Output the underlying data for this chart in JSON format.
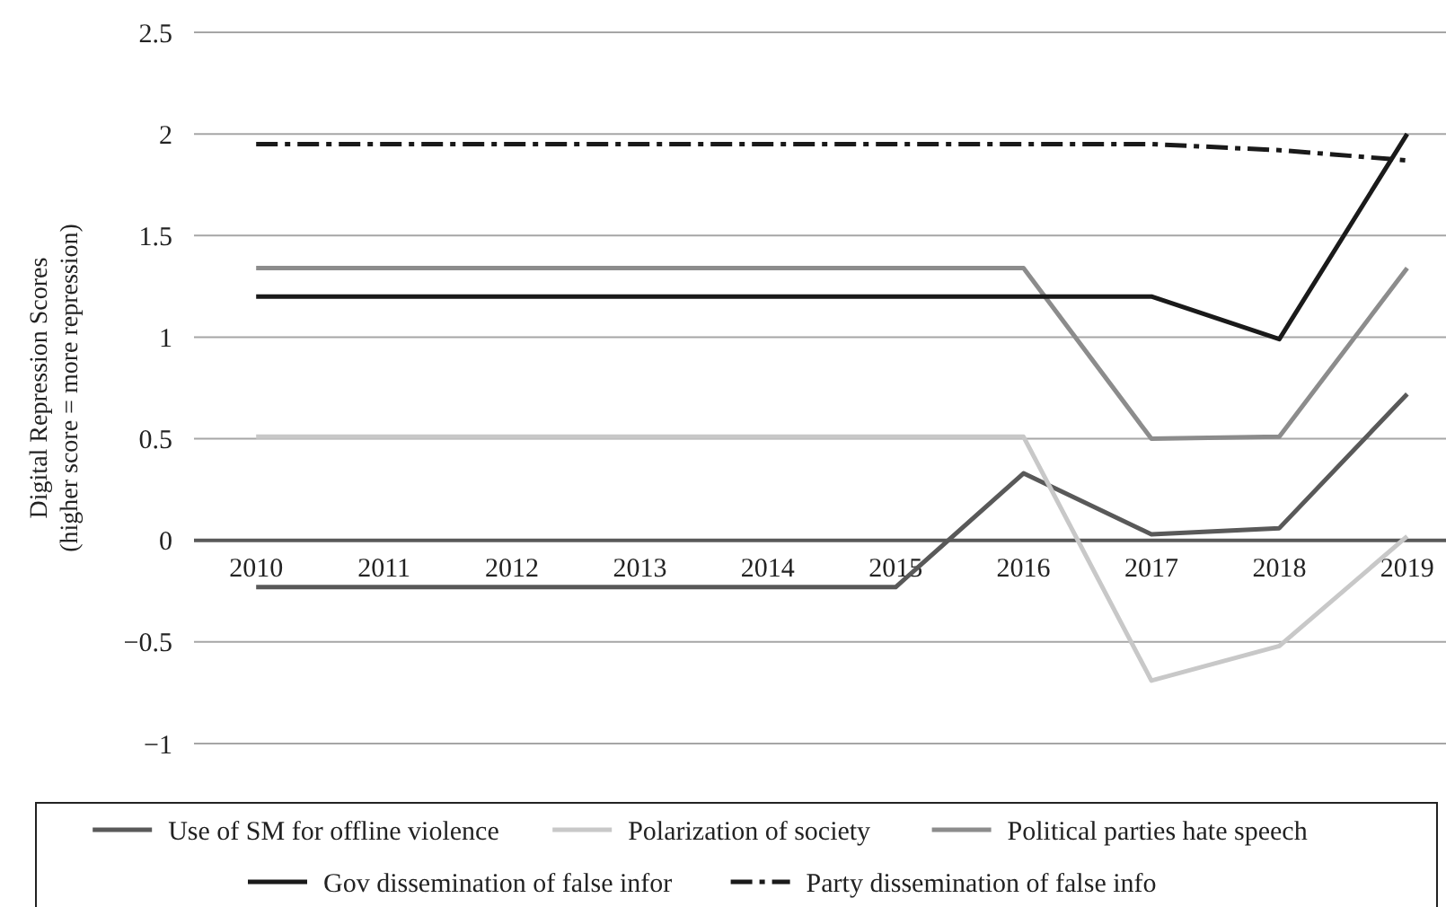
{
  "chart_data": {
    "type": "line",
    "ylabel": "Digital Repression Scores\n(higher score = more repression)",
    "categories": [
      "2010",
      "2011",
      "2012",
      "2013",
      "2014",
      "2015",
      "2016",
      "2017",
      "2018",
      "2019"
    ],
    "ylim": [
      -1,
      2.5
    ],
    "yticks": [
      -1,
      -0.5,
      0,
      0.5,
      1,
      1.5,
      2,
      2.5
    ],
    "grid": "y",
    "legend": "bottom",
    "marker": "none",
    "series": [
      {
        "name": "Use of SM for offline violence",
        "color": "#595959",
        "line_style": "solid",
        "values": [
          -0.23,
          -0.23,
          -0.23,
          -0.23,
          -0.23,
          -0.23,
          0.33,
          0.03,
          0.06,
          0.72
        ]
      },
      {
        "name": "Polarization of society",
        "color": "#c8c8c8",
        "line_style": "solid",
        "values": [
          0.51,
          0.51,
          0.51,
          0.51,
          0.51,
          0.51,
          0.51,
          -0.69,
          -0.52,
          0.02
        ]
      },
      {
        "name": "Political parties hate speech",
        "color": "#8c8c8c",
        "line_style": "solid",
        "values": [
          1.34,
          1.34,
          1.34,
          1.34,
          1.34,
          1.34,
          1.34,
          0.5,
          0.51,
          1.34
        ]
      },
      {
        "name": "Gov dissemination of false infor",
        "color": "#1a1a1a",
        "line_style": "solid",
        "values": [
          1.2,
          1.2,
          1.2,
          1.2,
          1.2,
          1.2,
          1.2,
          1.2,
          0.99,
          2.0
        ]
      },
      {
        "name": "Party dissemination of false info",
        "color": "#1a1a1a",
        "line_style": "dashed",
        "values": [
          1.95,
          1.95,
          1.95,
          1.95,
          1.95,
          1.95,
          1.95,
          1.95,
          1.92,
          1.87
        ]
      }
    ]
  }
}
